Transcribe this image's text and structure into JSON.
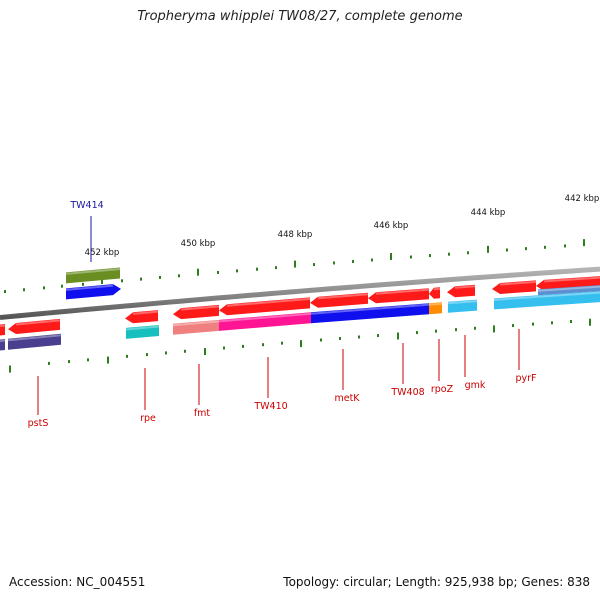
{
  "title": "Tropheryma whipplei TW08/27, complete genome",
  "footer": {
    "accession": "Accession: NC_004551",
    "summary": "Topology: circular; Length: 925,938 bp; Genes: 838"
  },
  "colors": {
    "backbone": "#8a8a8a",
    "tick": "#2e7d1e",
    "ruler_text": "#111111",
    "gene_label": "#cc0000",
    "special_label": "#1a1aa0"
  },
  "ruler": [
    {
      "label": "452 kbp"
    },
    {
      "label": "450 kbp"
    },
    {
      "label": "448 kbp"
    },
    {
      "label": "446 kbp"
    },
    {
      "label": "444 kbp"
    },
    {
      "label": "442 kbp"
    }
  ],
  "gene_labels": [
    {
      "text": "pstS",
      "kind": "gene"
    },
    {
      "text": "rpe",
      "kind": "gene"
    },
    {
      "text": "fmt",
      "kind": "gene"
    },
    {
      "text": "TW410",
      "kind": "gene"
    },
    {
      "text": "metK",
      "kind": "gene"
    },
    {
      "text": "TW408",
      "kind": "gene"
    },
    {
      "text": "rpoZ",
      "kind": "gene"
    },
    {
      "text": "gmk",
      "kind": "gene"
    },
    {
      "text": "pyrF",
      "kind": "gene"
    },
    {
      "text": "TW414",
      "kind": "special"
    }
  ],
  "feature_colors": {
    "cds": "#ff1a1a",
    "navy": "#4a3f8f",
    "olive": "#6b8e23",
    "blue": "#1010ee",
    "teal": "#18bfbf",
    "salmon": "#f08080",
    "magenta": "#ff1493",
    "orange": "#ff8c00",
    "skyblue": "#35bfef",
    "steel": "#5b8fd0"
  }
}
